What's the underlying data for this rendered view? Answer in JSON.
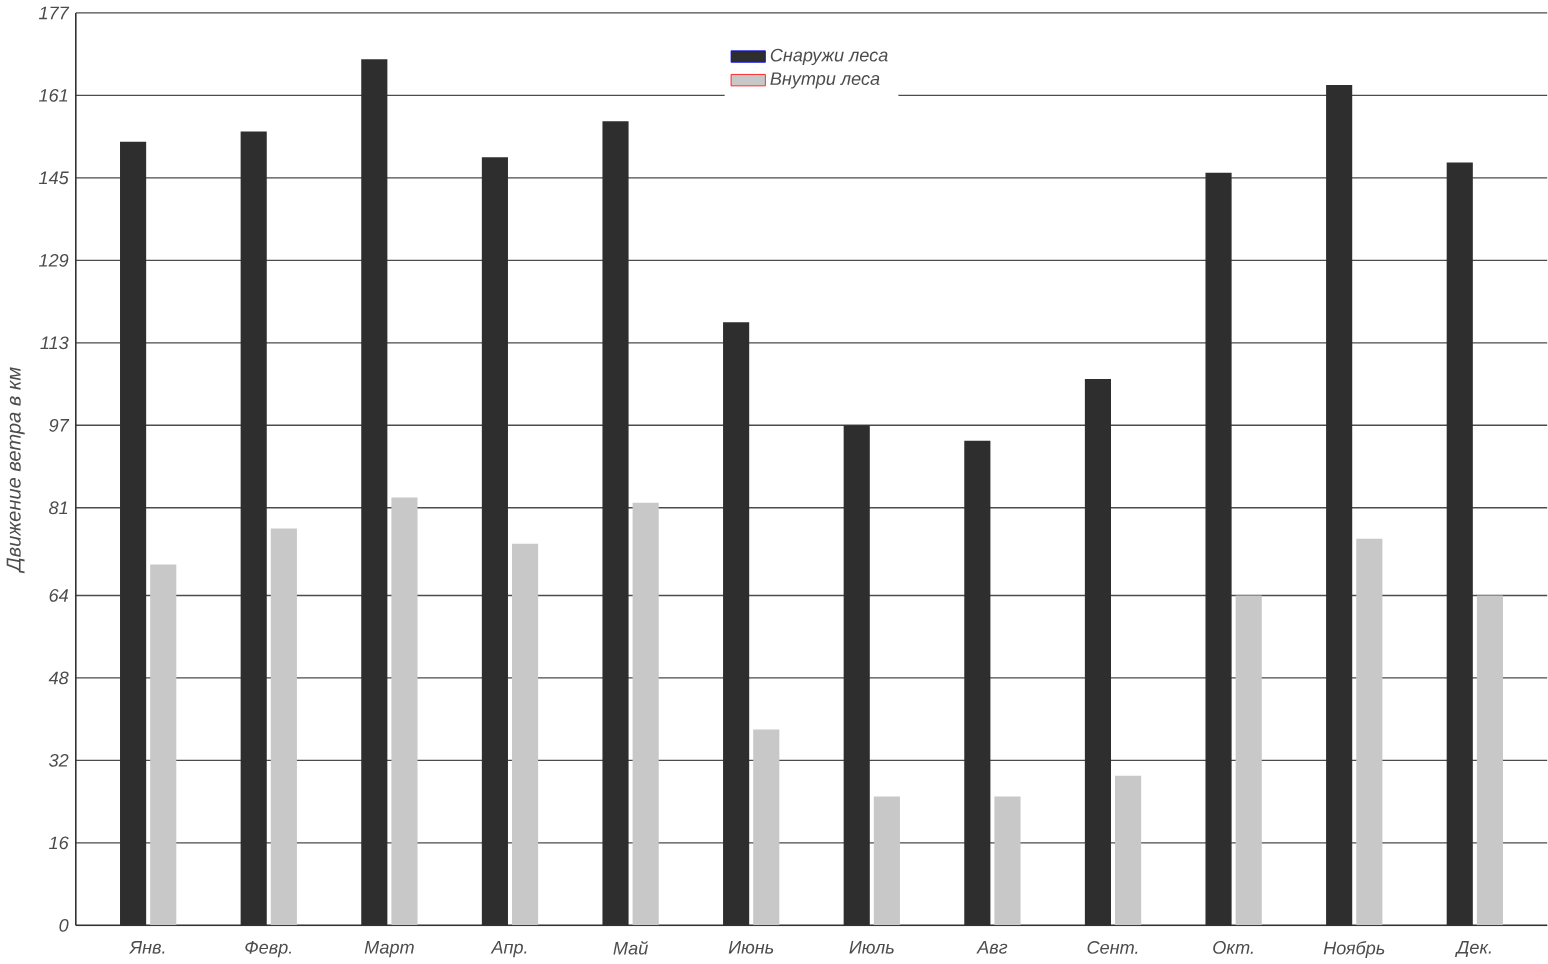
{
  "chart_data": {
    "type": "bar",
    "ylabel": "Движение ветра в км",
    "categories": [
      "Янв.",
      "Февр.",
      "Март",
      "Апр.",
      "Май",
      "Июнь",
      "Июль",
      "Авг",
      "Сент.",
      "Окт.",
      "Ноябрь",
      "Дек."
    ],
    "series": [
      {
        "name": "Снаружи леса",
        "color": "#2e2e2e",
        "values": [
          152,
          154,
          168,
          149,
          156,
          117,
          97,
          94,
          106,
          146,
          163,
          148
        ]
      },
      {
        "name": "Внутри леса",
        "color": "#c8c8c8",
        "values": [
          70,
          77,
          83,
          74,
          82,
          38,
          25,
          25,
          29,
          64,
          75,
          64
        ]
      }
    ],
    "ylim": [
      0,
      177
    ],
    "yticks": [
      0,
      16,
      32,
      48,
      64,
      81,
      97,
      113,
      129,
      145,
      161,
      177
    ],
    "grid": "y",
    "legend": "top"
  }
}
